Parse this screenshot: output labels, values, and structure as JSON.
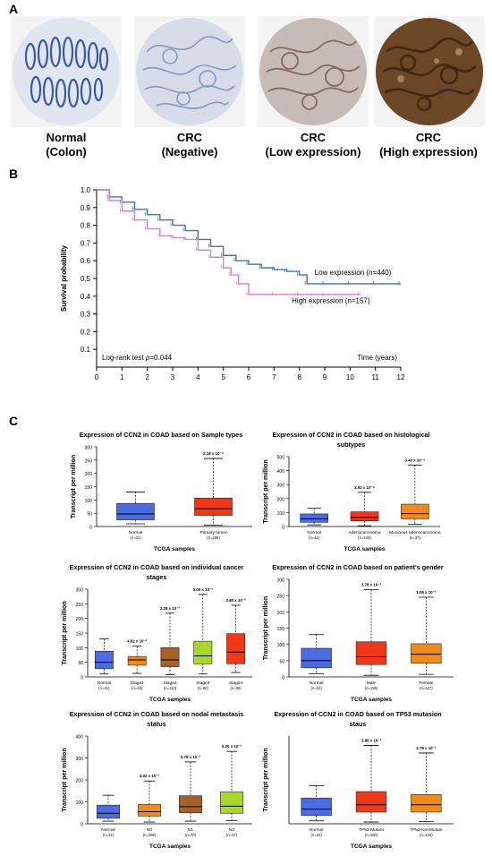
{
  "panel_a": {
    "label": "A",
    "images": [
      {
        "caption": "Normal\n(Colon)",
        "color": "#8a9ec0"
      },
      {
        "caption": "CRC\n(Negative)",
        "color": "#a3b3cc"
      },
      {
        "caption": "CRC\n(Low expression)",
        "color": "#9d8d85"
      },
      {
        "caption": "CRC\n(High expression)",
        "color": "#6b4726"
      }
    ]
  },
  "panel_b": {
    "label": "B",
    "ylabel": "Survival probability",
    "xlabel": "Time (years)",
    "test_prefix": "Log-rank test ",
    "test_p": "p",
    "test_value": "=0.044",
    "low_label": "Low expression (n=440)",
    "high_label": "High expression (n=157)",
    "low_color": "#3a74b5",
    "high_color": "#d37fd6"
  },
  "panel_c": {
    "label": "C",
    "ylabel": "Transcript per million",
    "xlabel": "TCGA samples",
    "colors": {
      "blue": "#4a6ce0",
      "red": "#f03818",
      "orange": "#f08a1a",
      "green": "#a8d828",
      "brown": "#a8602a"
    }
  },
  "chart_data": [
    {
      "type": "line",
      "title": "",
      "xlabel": "Time (years)",
      "ylabel": "Survival probability",
      "xlim": [
        0,
        12
      ],
      "ylim": [
        0,
        1.0
      ],
      "xticks": [
        0,
        1,
        2,
        3,
        4,
        5,
        6,
        7,
        8,
        9,
        10,
        11,
        12
      ],
      "yticks": [
        0.1,
        0.2,
        0.3,
        0.4,
        0.5,
        0.6,
        0.7,
        0.8,
        0.9,
        1.0
      ],
      "series": [
        {
          "name": "Low expression (n=440)",
          "x": [
            0,
            0.5,
            1,
            1.5,
            2,
            2.5,
            3,
            3.5,
            4,
            4.5,
            5,
            5.5,
            6,
            6.5,
            7,
            7.5,
            8,
            8.3,
            9,
            10,
            11,
            12
          ],
          "y": [
            1.0,
            0.96,
            0.93,
            0.89,
            0.86,
            0.83,
            0.8,
            0.77,
            0.72,
            0.68,
            0.63,
            0.6,
            0.58,
            0.56,
            0.55,
            0.54,
            0.52,
            0.47,
            0.47,
            0.47,
            0.47,
            0.47
          ]
        },
        {
          "name": "High expression (n=157)",
          "x": [
            0,
            0.5,
            1,
            1.5,
            2,
            2.5,
            3,
            3.5,
            4,
            4.5,
            5,
            5.3,
            5.6,
            6,
            7,
            8,
            9,
            10.4
          ],
          "y": [
            1.0,
            0.94,
            0.88,
            0.83,
            0.78,
            0.74,
            0.73,
            0.72,
            0.66,
            0.62,
            0.56,
            0.52,
            0.47,
            0.41,
            0.41,
            0.41,
            0.41,
            0.41
          ]
        }
      ]
    },
    {
      "type": "box",
      "title": "Expression of CCN2 in COAD based on Sample types",
      "xlabel": "TCGA samples",
      "ylabel": "Transcript per million",
      "ylim": [
        0,
        300
      ],
      "yticks": [
        0,
        50,
        100,
        150,
        200,
        250,
        300
      ],
      "groups": [
        {
          "name": "Normal",
          "n": "(n=41)",
          "min": 10,
          "q1": 25,
          "median": 47,
          "q3": 87,
          "max": 130,
          "color": "blue",
          "sig": ""
        },
        {
          "name": "Primary tumor",
          "n": "(n=286)",
          "min": 5,
          "q1": 42,
          "median": 67,
          "q3": 107,
          "max": 256,
          "color": "red",
          "sig": "2.18 x 10⁻⁴"
        }
      ]
    },
    {
      "type": "box",
      "title": "Expression of CCN2 in COAD based on histological\nsubtypes",
      "xlabel": "TCGA samples",
      "ylabel": "Transcript per million",
      "ylim": [
        0,
        500
      ],
      "yticks": [
        0,
        100,
        200,
        300,
        400,
        500
      ],
      "groups": [
        {
          "name": "Normal",
          "n": "(n=41)",
          "min": 12,
          "q1": 30,
          "median": 55,
          "q3": 90,
          "max": 130,
          "color": "blue",
          "sig": ""
        },
        {
          "name": "Adenocarcinoma",
          "n": "(n=243)",
          "min": 5,
          "q1": 40,
          "median": 65,
          "q3": 105,
          "max": 245,
          "color": "red",
          "sig": "3.92 x 10⁻⁴"
        },
        {
          "name": "Mucinous adenocarcinoma",
          "n": "(n=37)",
          "min": 15,
          "q1": 55,
          "median": 92,
          "q3": 160,
          "max": 440,
          "color": "orange",
          "sig": "3.40 x 10⁻⁴"
        }
      ]
    },
    {
      "type": "box",
      "title": "Expression of CCN2 in COAD based on individual cancer\nstages",
      "xlabel": "TCGA samples",
      "ylabel": "Transcript per million",
      "ylim": [
        0,
        300
      ],
      "yticks": [
        0,
        50,
        100,
        150,
        200,
        250,
        300
      ],
      "groups": [
        {
          "name": "Normal",
          "n": "(n=41)",
          "min": 10,
          "q1": 28,
          "median": 50,
          "q3": 88,
          "max": 130,
          "color": "blue",
          "sig": ""
        },
        {
          "name": "Stage1",
          "n": "(n=45)",
          "min": 12,
          "q1": 40,
          "median": 58,
          "q3": 70,
          "max": 105,
          "color": "orange",
          "sig": "4.82 x 10⁻³"
        },
        {
          "name": "Stage2",
          "n": "(n=110)",
          "min": 8,
          "q1": 35,
          "median": 58,
          "q3": 100,
          "max": 218,
          "color": "brown",
          "sig": "2.28 x 10⁻³"
        },
        {
          "name": "Stage3",
          "n": "(n=80)",
          "min": 10,
          "q1": 45,
          "median": 72,
          "q3": 122,
          "max": 282,
          "color": "green",
          "sig": "3.00 x 10⁻³"
        },
        {
          "name": "Stage4",
          "n": "(n=38)",
          "min": 15,
          "q1": 45,
          "median": 85,
          "q3": 148,
          "max": 245,
          "color": "red",
          "sig": "3.80 x 10⁻³"
        }
      ]
    },
    {
      "type": "box",
      "title": "Expression of CCN2 in COAD based on patient's gender",
      "xlabel": "TCGA samples",
      "ylabel": "Transcript per million",
      "ylim": [
        0,
        300
      ],
      "yticks": [
        0,
        50,
        100,
        150,
        200,
        250,
        300
      ],
      "groups": [
        {
          "name": "Normal",
          "n": "(n=41)",
          "min": 10,
          "q1": 28,
          "median": 50,
          "q3": 88,
          "max": 130,
          "color": "blue",
          "sig": ""
        },
        {
          "name": "Male",
          "n": "(n=156)",
          "min": 5,
          "q1": 38,
          "median": 62,
          "q3": 108,
          "max": 268,
          "color": "red",
          "sig": "3.78 x 10⁻³"
        },
        {
          "name": "Female",
          "n": "(n=127)",
          "min": 8,
          "q1": 42,
          "median": 70,
          "q3": 102,
          "max": 245,
          "color": "orange",
          "sig": "1.08 x 10⁻³"
        }
      ]
    },
    {
      "type": "box",
      "title": "Expression of CCN2 in COAD based on nodal metastasis\nstatus",
      "xlabel": "TCGA samples",
      "ylabel": "Transcript per million",
      "ylim": [
        0,
        400
      ],
      "yticks": [
        0,
        100,
        200,
        300,
        400
      ],
      "groups": [
        {
          "name": "Normal",
          "n": "(n=41)",
          "min": 12,
          "q1": 25,
          "median": 48,
          "q3": 85,
          "max": 130,
          "color": "blue",
          "sig": ""
        },
        {
          "name": "N0",
          "n": "(n=166)",
          "min": 8,
          "q1": 35,
          "median": 55,
          "q3": 88,
          "max": 195,
          "color": "orange",
          "sig": "4.02 x 10⁻³"
        },
        {
          "name": "N1",
          "n": "(n=70)",
          "min": 12,
          "q1": 50,
          "median": 78,
          "q3": 128,
          "max": 282,
          "color": "brown",
          "sig": "5.78 x 10⁻³"
        },
        {
          "name": "N2",
          "n": "(n=47)",
          "min": 15,
          "q1": 48,
          "median": 80,
          "q3": 145,
          "max": 330,
          "color": "green",
          "sig": "5.20 x 10⁻³"
        }
      ]
    },
    {
      "type": "box",
      "title": "Expression of CCN2 in COAD based on TP53 mutasion\nstaus",
      "xlabel": "TCGA samples",
      "ylabel": "Transcript per million",
      "ylim": [
        0,
        300
      ],
      "yticks": [],
      "groups": [
        {
          "name": "Normal",
          "n": "(n=41)",
          "min": 10,
          "q1": 28,
          "median": 50,
          "q3": 88,
          "max": 130,
          "color": "blue",
          "sig": ""
        },
        {
          "name": "TP53-Mutant",
          "n": "(n=160)",
          "min": 6,
          "q1": 40,
          "median": 65,
          "q3": 110,
          "max": 268,
          "color": "red",
          "sig": "3.88 x 10⁻³"
        },
        {
          "name": "TP53-NonMutant",
          "n": "(n=122)",
          "min": 8,
          "q1": 40,
          "median": 65,
          "q3": 100,
          "max": 242,
          "color": "orange",
          "sig": "2.78 x 10⁻³"
        }
      ]
    }
  ]
}
